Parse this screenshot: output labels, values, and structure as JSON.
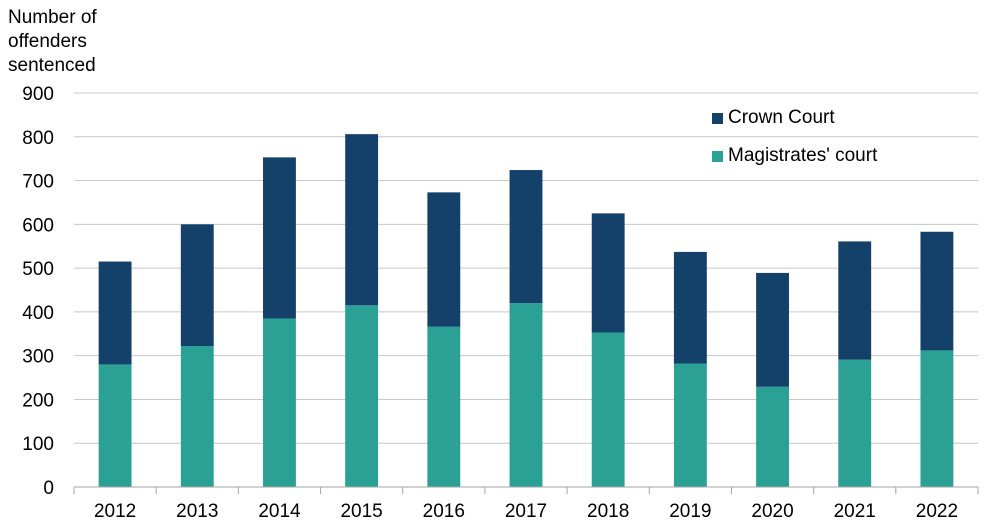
{
  "chart_data": {
    "type": "bar",
    "stacked": true,
    "ylabel_lines": [
      "Number of",
      "offenders",
      "sentenced"
    ],
    "ylim": [
      0,
      900
    ],
    "yticks": [
      0,
      100,
      200,
      300,
      400,
      500,
      600,
      700,
      800,
      900
    ],
    "categories": [
      "2012",
      "2013",
      "2014",
      "2015",
      "2016",
      "2017",
      "2018",
      "2019",
      "2020",
      "2021",
      "2022"
    ],
    "series": [
      {
        "name": "Magistrates' court",
        "color": "#2BA196",
        "values": [
          280,
          322,
          385,
          415,
          366,
          420,
          353,
          282,
          229,
          291,
          312
        ]
      },
      {
        "name": "Crown Court",
        "color": "#134169",
        "values": [
          235,
          278,
          368,
          391,
          307,
          304,
          272,
          255,
          260,
          270,
          271
        ]
      }
    ],
    "legend": [
      "Crown Court",
      "Magistrates' court"
    ],
    "grid": true,
    "legend_position": "top-right"
  }
}
